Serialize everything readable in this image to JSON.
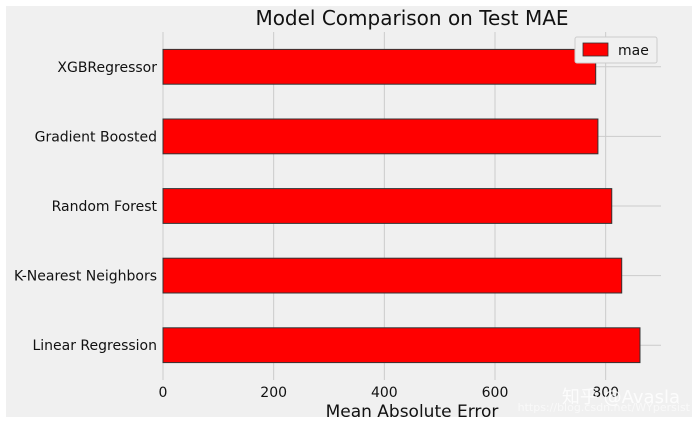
{
  "chart_data": {
    "type": "bar",
    "orientation": "horizontal",
    "title": "Model Comparison on Test MAE",
    "xlabel": "Mean Absolute Error",
    "ylabel": "",
    "categories": [
      "XGBRegressor",
      "Gradient Boosted",
      "Random Forest",
      "K-Nearest Neighbors",
      "Linear Regression"
    ],
    "series": [
      {
        "name": "mae",
        "values": [
          782,
          786,
          811,
          829,
          862
        ],
        "color": "#ff0000"
      }
    ],
    "xlim": [
      0,
      900
    ],
    "xticks": [
      0,
      200,
      400,
      600,
      800
    ],
    "grid": true,
    "legend": "top-right",
    "background": "#f0f0f0",
    "edge_color": "#333333"
  },
  "watermark": {
    "text": "知乎 @Avasla",
    "subtext": "https://blog.csdn.net/WYpersist"
  }
}
